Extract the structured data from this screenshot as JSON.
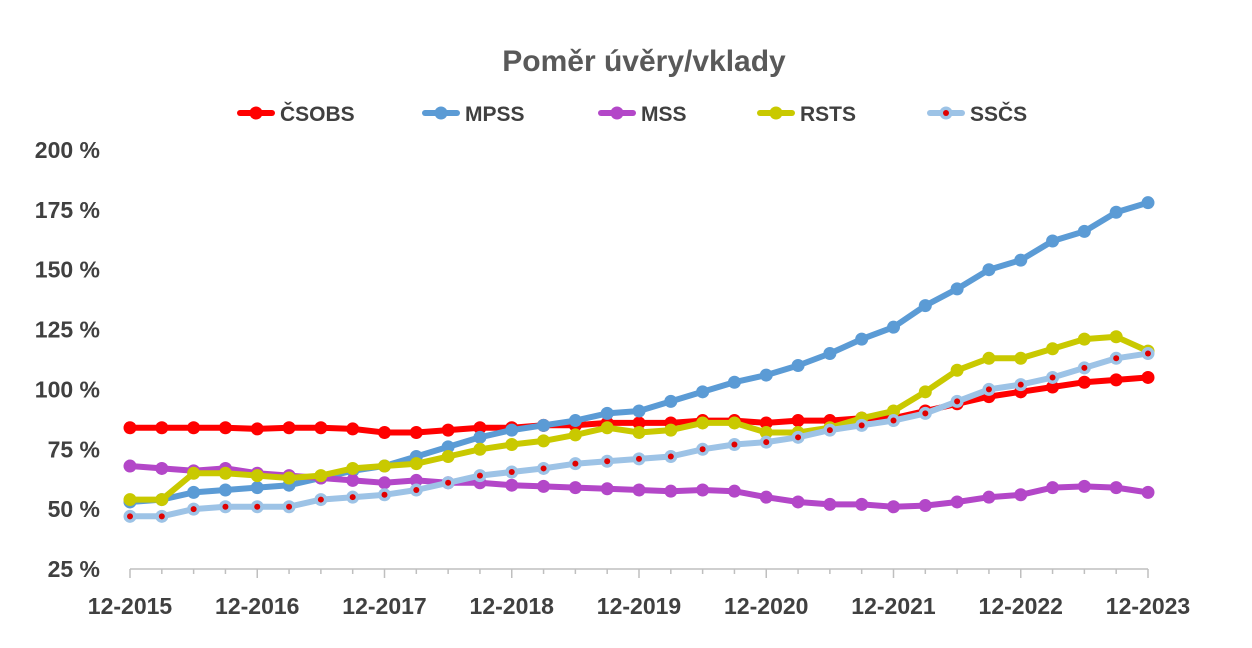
{
  "chart_data": {
    "type": "line",
    "title": "Poměr úvěry/vklady",
    "xlabel": "",
    "ylabel": "",
    "ylim": [
      25,
      200
    ],
    "y_ticks": [
      "25 %",
      "50 %",
      "75 %",
      "100 %",
      "125 %",
      "150 %",
      "175 %",
      "200 %"
    ],
    "y_tick_values": [
      25,
      50,
      75,
      100,
      125,
      150,
      175,
      200
    ],
    "x_ticks": [
      "12-2015",
      "12-2016",
      "12-2017",
      "12-2018",
      "12-2019",
      "12-2020",
      "12-2021",
      "12-2022",
      "12-2023"
    ],
    "x_periods": [
      "12-2015",
      "03-2016",
      "06-2016",
      "09-2016",
      "12-2016",
      "03-2017",
      "06-2017",
      "09-2017",
      "12-2017",
      "03-2018",
      "06-2018",
      "09-2018",
      "12-2018",
      "03-2019",
      "06-2019",
      "09-2019",
      "12-2019",
      "03-2020",
      "06-2020",
      "09-2020",
      "12-2020",
      "03-2021",
      "06-2021",
      "09-2021",
      "12-2021",
      "03-2022",
      "06-2022",
      "09-2022",
      "12-2022",
      "03-2023",
      "06-2023",
      "09-2023",
      "12-2023"
    ],
    "grid": false,
    "legend_position": "top",
    "series": [
      {
        "name": "ČSOBS",
        "color": "#ff0000",
        "marker": "filled",
        "values": [
          84,
          84,
          84,
          84,
          83.5,
          84,
          84,
          83.5,
          82,
          82,
          83,
          84,
          84,
          85,
          85,
          86,
          86,
          86,
          87,
          87,
          86,
          87,
          87,
          88,
          88,
          91,
          94,
          97,
          99,
          101,
          103,
          104,
          105
        ]
      },
      {
        "name": "MPSS",
        "color": "#5b9bd5",
        "marker": "filled",
        "values": [
          53,
          54,
          57,
          58,
          59,
          60,
          63,
          66,
          68,
          72,
          76,
          80,
          83,
          85,
          87,
          90,
          91,
          95,
          99,
          103,
          106,
          110,
          115,
          121,
          126,
          135,
          142,
          150,
          154,
          162,
          166,
          174,
          178
        ]
      },
      {
        "name": "MSS",
        "color": "#b347c8",
        "marker": "filled",
        "values": [
          68,
          67,
          66,
          67,
          65,
          64,
          63,
          62,
          61,
          62,
          61,
          61,
          60,
          59.5,
          59,
          58.5,
          58,
          57.5,
          58,
          57.5,
          55,
          53,
          52,
          52,
          51,
          51.5,
          53,
          55,
          56,
          59,
          59.5,
          59,
          57
        ]
      },
      {
        "name": "RSTS",
        "color": "#c9c900",
        "marker": "filled",
        "values": [
          54,
          54,
          65,
          65,
          64,
          63,
          64,
          67,
          68,
          69,
          72,
          75,
          77,
          78.5,
          81,
          84,
          82,
          83,
          86,
          86,
          82,
          82,
          84,
          88,
          91,
          99,
          108,
          113,
          113,
          117,
          121,
          122,
          116
        ]
      },
      {
        "name": "SSČS",
        "color": "#9dc3e6",
        "marker": "dotted",
        "dot_color": "#e00000",
        "values": [
          47,
          47,
          50,
          51,
          51,
          51,
          54,
          55,
          56,
          58,
          61,
          64,
          65.5,
          67,
          69,
          70,
          71,
          72,
          75,
          77,
          78,
          80,
          83,
          85,
          87,
          90,
          95,
          100,
          102,
          105,
          109,
          113,
          115
        ]
      }
    ]
  }
}
